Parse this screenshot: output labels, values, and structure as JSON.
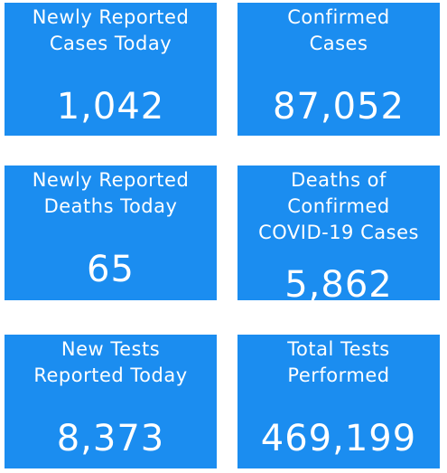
{
  "tiles": [
    {
      "label_lines": [
        "Newly Reported",
        "Cases Today"
      ],
      "value": "1,042"
    },
    {
      "label_lines": [
        "Confirmed",
        "Cases"
      ],
      "value": "87,052"
    },
    {
      "label_lines": [
        "Newly Reported",
        "Deaths Today"
      ],
      "value": "65"
    },
    {
      "label_lines": [
        "Deaths of",
        "Confirmed",
        "COVID-19 Cases"
      ],
      "value": "5,862"
    },
    {
      "label_lines": [
        "New Tests",
        "Reported Today"
      ],
      "value": "8,373"
    },
    {
      "label_lines": [
        "Total Tests",
        "Performed"
      ],
      "value": "469,199"
    }
  ]
}
